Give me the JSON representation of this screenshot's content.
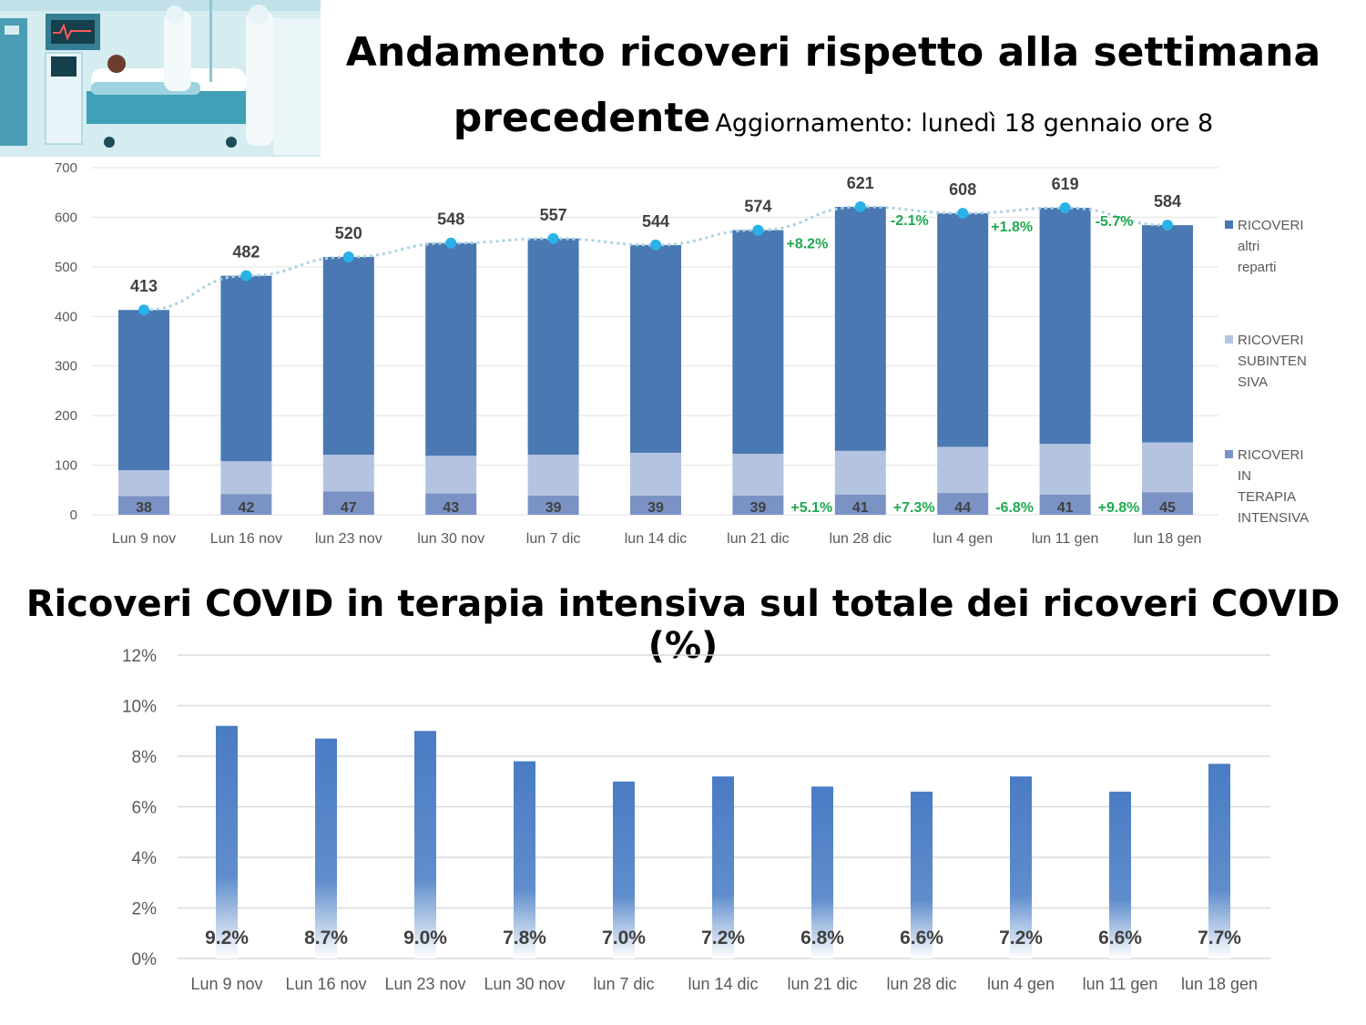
{
  "header": {
    "title_line1": "Andamento ricoveri rispetto alla settimana",
    "title_line2": "precedente",
    "update_text": "Aggiornamento: lunedì 18 gennaio ore 8"
  },
  "chart_data": [
    {
      "type": "bar",
      "stacked": true,
      "categories": [
        "Lun 9 nov",
        "Lun 16 nov",
        "lun 23 nov",
        "lun 30 nov",
        "lun 7 dic",
        "lun 14 dic",
        "lun 21 dic",
        "lun 28 dic",
        "lun 4 gen",
        "lun 11 gen",
        "lun 18 gen"
      ],
      "series": [
        {
          "name": "RICOVERI IN TERAPIA INTENSIVA",
          "color": "#7b93c4",
          "values": [
            38,
            42,
            47,
            43,
            39,
            39,
            39,
            41,
            44,
            41,
            45
          ]
        },
        {
          "name": "RICOVERI SUBINTENSIVA",
          "color": "#b4c3df",
          "values": [
            52,
            66,
            74,
            76,
            82,
            86,
            84,
            88,
            93,
            102,
            101
          ]
        },
        {
          "name": "RICOVERI altri reparti",
          "color": "#4a78b2",
          "values": [
            323,
            374,
            399,
            429,
            436,
            419,
            451,
            492,
            471,
            476,
            438
          ]
        }
      ],
      "totals": [
        413,
        482,
        520,
        548,
        557,
        544,
        574,
        621,
        608,
        619,
        584
      ],
      "total_change_labels": [
        "",
        "",
        "",
        "",
        "",
        "",
        "+8.2%",
        "-2.1%",
        "+1.8%",
        "-5.7%",
        ""
      ],
      "ti_change_labels": [
        "",
        "",
        "",
        "",
        "",
        "",
        "+5.1%",
        "+7.3%",
        "-6.8%",
        "+9.8%",
        ""
      ],
      "legend_lines": [
        [
          "RICOVERI",
          "altri",
          "reparti"
        ],
        [
          "RICOVERI",
          "SUBINTEN",
          "SIVA"
        ],
        [
          "RICOVERI",
          "IN",
          "TERAPIA",
          "INTENSIVA"
        ]
      ],
      "yticks": [
        0,
        100,
        200,
        300,
        400,
        500,
        600,
        700
      ],
      "ylim": [
        0,
        700
      ],
      "legend_position": "right",
      "colors": {
        "line": "#a9d3e3",
        "dot": "#29b1e8",
        "change": "#1faa4f",
        "value_text": "#404040"
      }
    },
    {
      "type": "bar",
      "title": "Ricoveri COVID in terapia intensiva sul totale dei ricoveri COVID (%)",
      "categories": [
        "Lun 9 nov",
        "Lun 16 nov",
        "Lun 23 nov",
        "Lun 30 nov",
        "lun 7 dic",
        "lun 14 dic",
        "lun 21 dic",
        "lun 28 dic",
        "lun 4 gen",
        "lun 11 gen",
        "lun 18 gen"
      ],
      "values": [
        9.2,
        8.7,
        9.0,
        7.8,
        7.0,
        7.2,
        6.8,
        6.6,
        7.2,
        6.6,
        7.7
      ],
      "value_labels": [
        "9.2%",
        "8.7%",
        "9.0%",
        "7.8%",
        "7.0%",
        "7.2%",
        "6.8%",
        "6.6%",
        "7.2%",
        "6.6%",
        "7.7%"
      ],
      "yticks": [
        "0%",
        "2%",
        "4%",
        "6%",
        "8%",
        "10%",
        "12%"
      ],
      "ylim": [
        0,
        12
      ],
      "colors": {
        "bar": "#4a7cc4"
      }
    }
  ]
}
